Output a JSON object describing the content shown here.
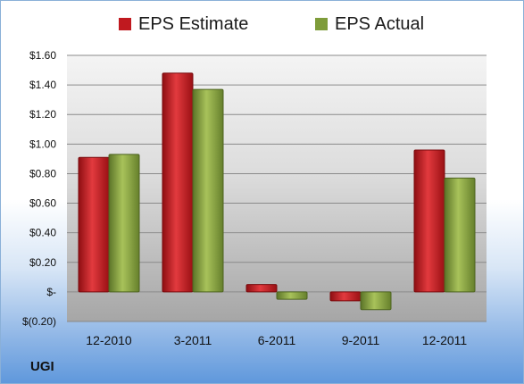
{
  "chart_data": {
    "type": "bar",
    "title": "",
    "xlabel": "",
    "ylabel": "",
    "categories": [
      "12-2010",
      "3-2011",
      "6-2011",
      "9-2011",
      "12-2011"
    ],
    "series": [
      {
        "name": "EPS Estimate",
        "color": "#c0191f",
        "values": [
          0.91,
          1.48,
          0.05,
          -0.06,
          0.96
        ]
      },
      {
        "name": "EPS Actual",
        "color": "#7e9c3a",
        "values": [
          0.93,
          1.37,
          -0.05,
          -0.12,
          0.77
        ]
      }
    ],
    "ylim": [
      -0.2,
      1.6
    ],
    "yticks": [
      1.6,
      1.4,
      1.2,
      1.0,
      0.8,
      0.6,
      0.4,
      0.2,
      0,
      -0.2
    ],
    "ytick_labels": [
      "$1.60",
      "$1.40",
      "$1.20",
      "$1.00",
      "$0.80",
      "$0.60",
      "$0.40",
      "$0.20",
      "$-",
      "$(0.20)"
    ],
    "grid": true,
    "legend_position": "top"
  },
  "legend": {
    "estimate_label": "EPS Estimate",
    "actual_label": "EPS Actual"
  },
  "footer": {
    "ticker": "UGI"
  }
}
